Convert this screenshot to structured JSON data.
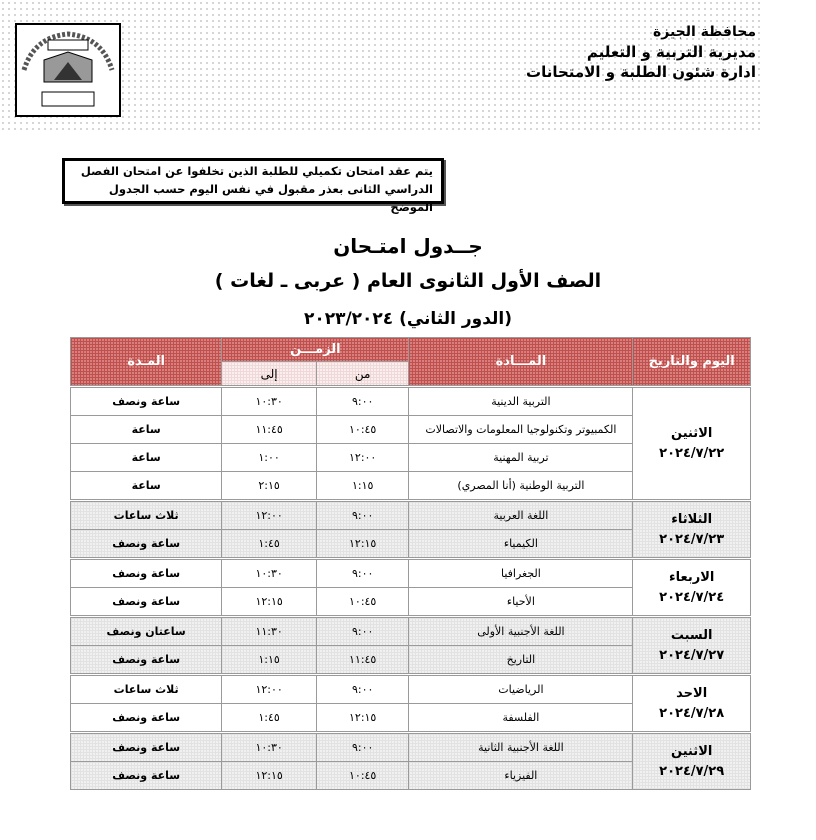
{
  "header": {
    "lines": [
      "محافظة الجيزة",
      "مديرية التربية و التعليم",
      "ادارة شئون الطلبة و الامتحانات"
    ],
    "logo_text": [
      "محافظة الجيزة",
      "شئون الطلبة"
    ]
  },
  "notice": {
    "lines": [
      "يتم عقد امتحان تكميلي للطلبة الذين تخلفوا عن امتحان الفصل",
      "الدراسي الثانى بعذر مقبول في نفس اليوم حسب الجدول الموضح"
    ]
  },
  "title": "جــدول امتـحان",
  "subtitle": "الصف الأول الثانوى العام ( عربى ـ لغات )",
  "session": "(الدور الثاني) ٢٠٢٣/٢٠٢٤",
  "table": {
    "headers": {
      "day": "اليوم والتاريخ",
      "subject": "المـــادة",
      "time": "الزمـــن",
      "from": "من",
      "to": "إلى",
      "duration": "المـدة"
    },
    "days": [
      {
        "day": "الاثنين",
        "date": "٢٠٢٤/٧/٢٢",
        "shaded": false,
        "rows": [
          {
            "subject": "التربية الدينية",
            "from": "٩:٠٠",
            "to": "١٠:٣٠",
            "duration": "ساعة ونصف"
          },
          {
            "subject": "الكمبيوتر وتكنولوجيا المعلومات والاتصالات",
            "from": "١٠:٤٥",
            "to": "١١:٤٥",
            "duration": "ساعة"
          },
          {
            "subject": "تربية المهنية",
            "from": "١٢:٠٠",
            "to": "١:٠٠",
            "duration": "ساعة"
          },
          {
            "subject": "التربية الوطنية (أنا المصري)",
            "from": "١:١٥",
            "to": "٢:١٥",
            "duration": "ساعة"
          }
        ]
      },
      {
        "day": "الثلاثاء",
        "date": "٢٠٢٤/٧/٢٣",
        "shaded": true,
        "rows": [
          {
            "subject": "اللغة العربية",
            "from": "٩:٠٠",
            "to": "١٢:٠٠",
            "duration": "ثلاث ساعات"
          },
          {
            "subject": "الكيمياء",
            "from": "١٢:١٥",
            "to": "١:٤٥",
            "duration": "ساعة ونصف"
          }
        ]
      },
      {
        "day": "الاربعاء",
        "date": "٢٠٢٤/٧/٢٤",
        "shaded": false,
        "rows": [
          {
            "subject": "الجغرافيا",
            "from": "٩:٠٠",
            "to": "١٠:٣٠",
            "duration": "ساعة ونصف"
          },
          {
            "subject": "الأحياء",
            "from": "١٠:٤٥",
            "to": "١٢:١٥",
            "duration": "ساعة ونصف"
          }
        ]
      },
      {
        "day": "السبت",
        "date": "٢٠٢٤/٧/٢٧",
        "shaded": true,
        "rows": [
          {
            "subject": "اللغة الأجنبية الأولى",
            "from": "٩:٠٠",
            "to": "١١:٣٠",
            "duration": "ساعتان ونصف"
          },
          {
            "subject": "التاريخ",
            "from": "١١:٤٥",
            "to": "١:١٥",
            "duration": "ساعة ونصف"
          }
        ]
      },
      {
        "day": "الاحد",
        "date": "٢٠٢٤/٧/٢٨",
        "shaded": false,
        "rows": [
          {
            "subject": "الرياضيات",
            "from": "٩:٠٠",
            "to": "١٢:٠٠",
            "duration": "ثلاث ساعات"
          },
          {
            "subject": "الفلسفة",
            "from": "١٢:١٥",
            "to": "١:٤٥",
            "duration": "ساعة ونصف"
          }
        ]
      },
      {
        "day": "الاثنين",
        "date": "٢٠٢٤/٧/٢٩",
        "shaded": true,
        "rows": [
          {
            "subject": "اللغة الأجنبية الثانية",
            "from": "٩:٠٠",
            "to": "١٠:٣٠",
            "duration": "ساعة ونصف"
          },
          {
            "subject": "الفيزياء",
            "from": "١٠:٤٥",
            "to": "١٢:١٥",
            "duration": "ساعة ونصف"
          }
        ]
      }
    ]
  }
}
